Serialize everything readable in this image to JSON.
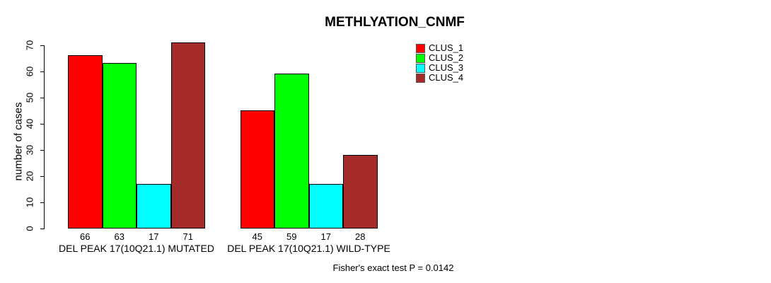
{
  "chart_data": {
    "type": "bar",
    "title": "METHLYATION_CNMF",
    "ylabel": "number of cases",
    "xlabel": "",
    "ylim": [
      0,
      70
    ],
    "yticks": [
      0,
      10,
      20,
      30,
      40,
      50,
      60,
      70
    ],
    "grid": false,
    "legend_position": "top-right",
    "categories": [
      "DEL PEAK 17(10Q21.1) MUTATED",
      "DEL PEAK 17(10Q21.1) WILD-TYPE"
    ],
    "series": [
      {
        "name": "CLUS_1",
        "color": "#FF0000",
        "values": [
          66,
          45
        ]
      },
      {
        "name": "CLUS_2",
        "color": "#00FF00",
        "values": [
          63,
          59
        ]
      },
      {
        "name": "CLUS_3",
        "color": "#00FFFF",
        "values": [
          17,
          17
        ]
      },
      {
        "name": "CLUS_4",
        "color": "#A52A2A",
        "values": [
          71,
          28
        ]
      }
    ],
    "bar_value_labels": [
      [
        "66",
        "63",
        "17",
        "71"
      ],
      [
        "45",
        "59",
        "17",
        "28"
      ]
    ],
    "footnote": "Fisher's exact test P = 0.0142"
  }
}
